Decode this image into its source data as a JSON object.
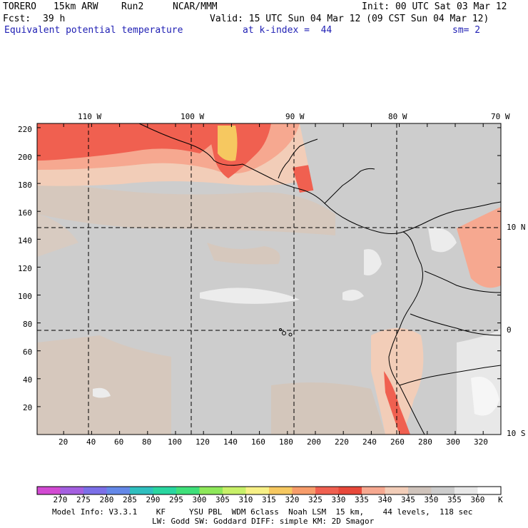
{
  "header": {
    "model_name": "TORERO",
    "resolution": "15km ARW",
    "run": "Run2",
    "org": "NCAR/MMM",
    "init": "Init: 00 UTC Sat 03 Mar 12",
    "fcst_label": "Fcst:",
    "fcst_value": "39 h",
    "valid": "Valid: 15 UTC Sun 04 Mar 12 (09 CST Sun 04 Mar 12)",
    "field": "Equivalent potential temperature",
    "level": "at k-index =  44",
    "smoothing": "sm= 2"
  },
  "map": {
    "top_lon_labels": [
      "110 W",
      "100 W",
      "90 W",
      "80 W",
      "70 W"
    ],
    "right_lat_labels": [
      "10 N",
      "0",
      "10 S"
    ],
    "left_y_ticks": [
      "220",
      "200",
      "180",
      "160",
      "140",
      "120",
      "100",
      "80",
      "60",
      "40",
      "20"
    ],
    "bottom_x_ticks": [
      "20",
      "40",
      "60",
      "80",
      "100",
      "120",
      "140",
      "160",
      "180",
      "200",
      "220",
      "240",
      "260",
      "280",
      "300",
      "320"
    ]
  },
  "colorbar": {
    "unit": "K",
    "levels": [
      "270",
      "275",
      "280",
      "285",
      "290",
      "295",
      "300",
      "305",
      "310",
      "315",
      "320",
      "325",
      "330",
      "335",
      "340",
      "345",
      "350",
      "355",
      "360"
    ],
    "colors": [
      "#d24ad2",
      "#a45fe0",
      "#7b6fe8",
      "#6488e8",
      "#2fbfbf",
      "#29d6a0",
      "#3fe07a",
      "#8ee85a",
      "#c8f068",
      "#f7f086",
      "#f6c860",
      "#f79c6a",
      "#f06050",
      "#e8483a",
      "#f6a890",
      "#f2cdb8",
      "#cfc3bb",
      "#cdcdcd",
      "#e8e8e8",
      "#ffffff"
    ]
  },
  "footer": {
    "line1": "Model Info: V3.3.1    KF     YSU PBL  WDM 6class  Noah LSM  15 km,    44 levels,  118 sec",
    "line2": "LW: Godd SW: Goddard DIFF: simple KM: 2D Smagor"
  }
}
